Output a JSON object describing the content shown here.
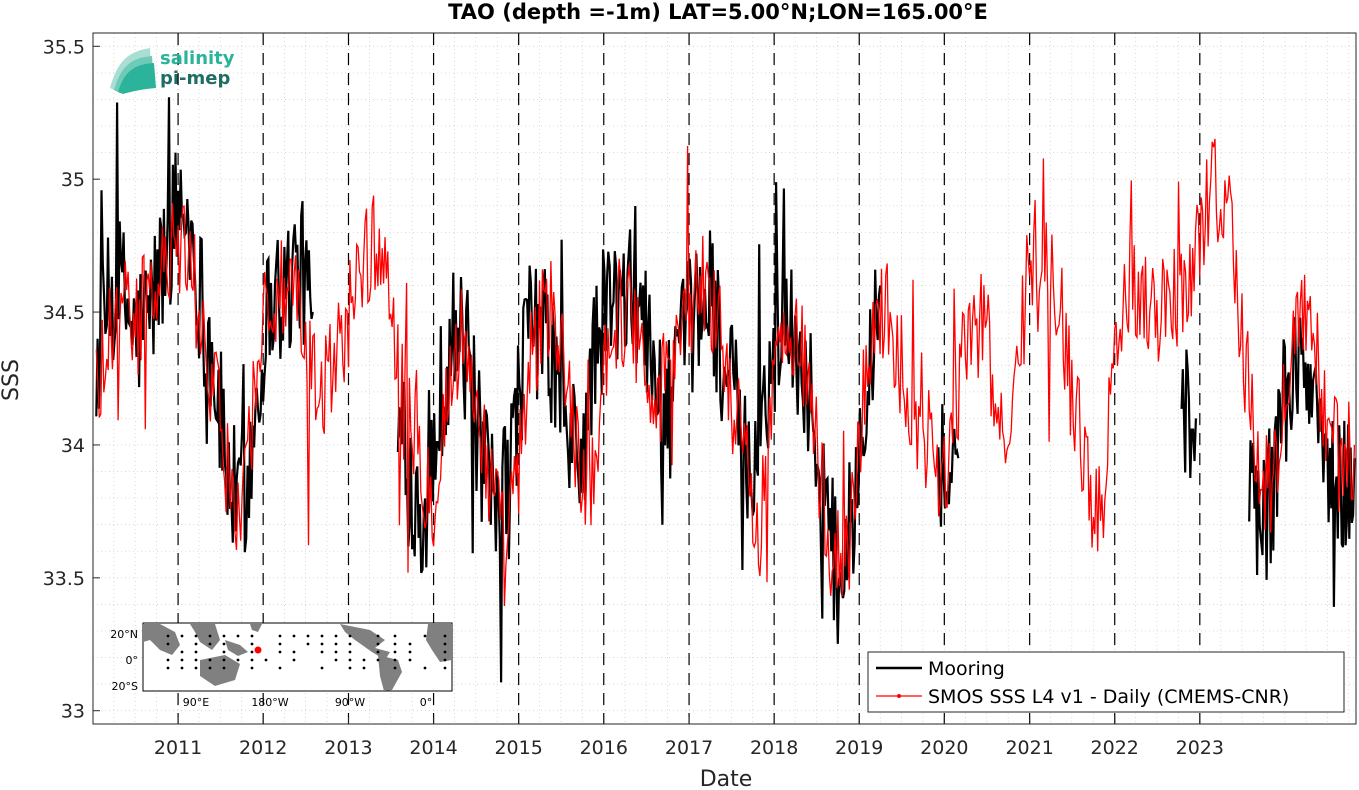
{
  "chart_data": {
    "type": "line",
    "title": "TAO (depth =-1m) LAT=5.00°N;LON=165.00°E",
    "xlabel": "Date",
    "ylabel": "SSS",
    "xlim": [
      "2010-01-01",
      "2024-11-01"
    ],
    "ylim": [
      32.95,
      35.55
    ],
    "y_ticks": [
      33,
      33.5,
      34,
      34.5,
      35,
      35.5
    ],
    "y_tick_labels": [
      "33",
      "33.5",
      "34",
      "34.5",
      "35",
      "35.5"
    ],
    "x_ticks": [
      "2011-01-01",
      "2012-01-01",
      "2013-01-01",
      "2014-01-01",
      "2015-01-01",
      "2016-01-01",
      "2017-01-01",
      "2018-01-01",
      "2019-01-01",
      "2020-01-01",
      "2021-01-01",
      "2022-01-01",
      "2023-01-01"
    ],
    "x_tick_labels": [
      "2011",
      "2012",
      "2013",
      "2014",
      "2015",
      "2016",
      "2017",
      "2018",
      "2019",
      "2020",
      "2021",
      "2022",
      "2023"
    ],
    "grid": true,
    "legend_position": "bottom-right",
    "series": [
      {
        "name": "Mooring",
        "color": "#000000",
        "segments": [
          {
            "x": [
              "2010-01-15",
              "2010-03-01",
              "2010-05-01",
              "2010-07-01",
              "2010-09-01",
              "2010-11-01",
              "2011-01-01",
              "2011-02-15",
              "2011-04-01",
              "2011-06-01",
              "2011-08-01",
              "2011-09-15",
              "2011-11-01",
              "2012-01-01",
              "2012-02-15",
              "2012-04-01",
              "2012-06-01",
              "2012-08-01"
            ],
            "y": [
              34.3,
              34.5,
              34.6,
              34.4,
              34.5,
              34.7,
              34.9,
              34.85,
              34.6,
              34.3,
              33.9,
              33.75,
              33.9,
              34.4,
              34.6,
              34.55,
              34.7,
              34.5
            ]
          },
          {
            "x": [
              "2013-08-01",
              "2013-10-01",
              "2013-12-01",
              "2014-02-01",
              "2014-04-01",
              "2014-06-01",
              "2014-08-01",
              "2014-10-01",
              "2014-12-01",
              "2015-02-01",
              "2015-04-01",
              "2015-06-01",
              "2015-08-01",
              "2015-10-01",
              "2015-12-01",
              "2016-02-01",
              "2016-04-01",
              "2016-06-01",
              "2016-08-01",
              "2016-10-01",
              "2016-12-01",
              "2017-02-01",
              "2017-04-01",
              "2017-06-01",
              "2017-08-01",
              "2017-10-01",
              "2017-12-01",
              "2018-02-01",
              "2018-04-01",
              "2018-06-01",
              "2018-08-01",
              "2018-10-01",
              "2018-12-01",
              "2019-02-01",
              "2019-04-01"
            ],
            "y": [
              34.0,
              33.85,
              33.75,
              34.2,
              34.45,
              34.3,
              33.9,
              33.7,
              33.95,
              34.4,
              34.45,
              34.3,
              34.0,
              33.95,
              34.4,
              34.55,
              34.5,
              34.6,
              34.25,
              34.1,
              34.35,
              34.5,
              34.6,
              34.3,
              34.1,
              33.8,
              34.2,
              34.5,
              34.4,
              34.2,
              33.8,
              33.5,
              33.7,
              34.3,
              34.6
            ]
          },
          {
            "x": [
              "2019-12-01",
              "2020-01-15",
              "2020-03-01"
            ],
            "y": [
              34.0,
              33.85,
              33.95
            ]
          },
          {
            "x": [
              "2022-10-15",
              "2022-11-15",
              "2022-12-15"
            ],
            "y": [
              34.3,
              34.0,
              34.1
            ]
          },
          {
            "x": [
              "2023-08-01",
              "2023-09-15",
              "2023-11-01",
              "2024-01-01",
              "2024-03-01",
              "2024-05-01",
              "2024-07-01",
              "2024-09-01",
              "2024-10-25"
            ],
            "y": [
              33.95,
              33.7,
              33.8,
              34.2,
              34.3,
              34.2,
              33.9,
              33.8,
              33.95
            ]
          }
        ]
      },
      {
        "name": "SMOS SSS L4 v1 - Daily (CMEMS-CNR)",
        "color": "#ff0000",
        "x": [
          "2010-01-15",
          "2010-03-01",
          "2010-05-01",
          "2010-07-01",
          "2010-09-01",
          "2010-11-01",
          "2011-01-01",
          "2011-02-15",
          "2011-04-01",
          "2011-06-01",
          "2011-08-01",
          "2011-09-15",
          "2011-11-01",
          "2012-01-01",
          "2012-03-01",
          "2012-05-01",
          "2012-07-01",
          "2012-09-01",
          "2012-11-01",
          "2013-01-01",
          "2013-03-01",
          "2013-05-01",
          "2013-07-01",
          "2013-09-01",
          "2013-11-01",
          "2014-01-01",
          "2014-03-01",
          "2014-05-01",
          "2014-07-01",
          "2014-09-01",
          "2014-11-01",
          "2015-01-01",
          "2015-03-01",
          "2015-05-01",
          "2015-07-01",
          "2015-09-01",
          "2015-11-01",
          "2016-01-01",
          "2016-03-01",
          "2016-05-01",
          "2016-07-01",
          "2016-09-01",
          "2016-11-01",
          "2017-01-01",
          "2017-03-01",
          "2017-05-01",
          "2017-07-01",
          "2017-09-01",
          "2017-11-01",
          "2018-01-01",
          "2018-03-01",
          "2018-05-01",
          "2018-07-01",
          "2018-09-01",
          "2018-11-01",
          "2019-01-01",
          "2019-03-01",
          "2019-05-01",
          "2019-07-01",
          "2019-09-01",
          "2019-11-01",
          "2020-01-01",
          "2020-03-01",
          "2020-05-01",
          "2020-07-01",
          "2020-09-01",
          "2020-11-01",
          "2021-01-01",
          "2021-03-01",
          "2021-05-01",
          "2021-07-01",
          "2021-09-01",
          "2021-11-01",
          "2022-01-01",
          "2022-03-01",
          "2022-05-01",
          "2022-07-01",
          "2022-09-01",
          "2022-11-01",
          "2023-01-01",
          "2023-03-01",
          "2023-05-01",
          "2023-07-01",
          "2023-09-01",
          "2023-11-01",
          "2024-01-01",
          "2024-03-01",
          "2024-05-01",
          "2024-07-01",
          "2024-09-01",
          "2024-10-25"
        ],
        "y": [
          34.2,
          34.4,
          34.5,
          34.45,
          34.55,
          34.65,
          34.75,
          34.7,
          34.5,
          34.2,
          33.9,
          33.8,
          34.0,
          34.5,
          34.55,
          34.6,
          34.3,
          34.2,
          34.3,
          34.5,
          34.7,
          34.75,
          34.6,
          34.1,
          33.95,
          33.8,
          34.2,
          34.4,
          34.2,
          33.85,
          33.6,
          33.9,
          34.3,
          34.55,
          34.4,
          34.0,
          33.8,
          34.3,
          34.5,
          34.5,
          34.3,
          34.2,
          34.4,
          34.5,
          34.6,
          34.5,
          34.2,
          33.9,
          33.7,
          34.2,
          34.5,
          34.4,
          34.0,
          33.6,
          33.5,
          34.0,
          34.5,
          34.5,
          34.3,
          34.1,
          34.0,
          33.9,
          34.2,
          34.5,
          34.4,
          34.0,
          34.2,
          34.7,
          34.8,
          34.6,
          34.2,
          33.9,
          33.7,
          34.4,
          34.6,
          34.6,
          34.5,
          34.55,
          34.6,
          34.8,
          35.0,
          34.9,
          34.4,
          33.95,
          33.8,
          34.2,
          34.5,
          34.4,
          34.1,
          33.9,
          34.0
        ]
      }
    ],
    "vlines": [
      "2011-01-01",
      "2012-01-01",
      "2013-01-01",
      "2014-01-01",
      "2015-01-01",
      "2016-01-01",
      "2017-01-01",
      "2018-01-01",
      "2019-01-01",
      "2020-01-01",
      "2021-01-01",
      "2022-01-01",
      "2023-01-01"
    ]
  },
  "logo": {
    "line1": "salinity",
    "line2": "pi-mep",
    "color1": "#2bb39b",
    "color2": "#1f6e63"
  },
  "inset_map": {
    "lat_labels": [
      "20°N",
      "0°",
      "20°S"
    ],
    "lon_labels": [
      "90°E",
      "180°W",
      "90°W",
      "0°"
    ],
    "marker_color": "#ff0000",
    "land_color": "#808080"
  }
}
